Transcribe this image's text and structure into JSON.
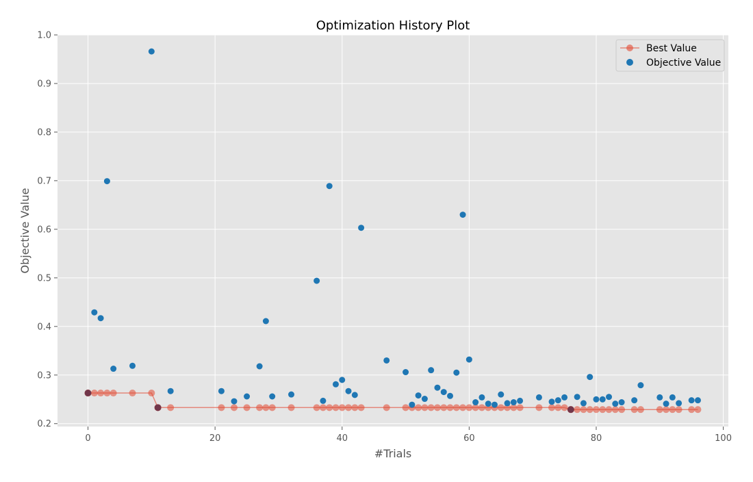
{
  "chart_data": {
    "type": "scatter",
    "title": "Optimization History Plot",
    "xlabel": "#Trials",
    "ylabel": "Objective Value",
    "xlim": [
      -4.8,
      100.8
    ],
    "ylim": [
      0.194,
      1.0
    ],
    "xticks": [
      0,
      20,
      40,
      60,
      80,
      100
    ],
    "yticks": [
      0.2,
      0.3,
      0.4,
      0.5,
      0.6,
      0.7,
      0.8,
      0.9,
      1.0
    ],
    "xtick_labels": [
      "0",
      "20",
      "40",
      "60",
      "80",
      "100"
    ],
    "ytick_labels": [
      "0.2",
      "0.3",
      "0.4",
      "0.5",
      "0.6",
      "0.7",
      "0.8",
      "0.9",
      "1.0"
    ],
    "grid": true,
    "legend_position": "top-right",
    "colors": {
      "best": "#e24a33",
      "objective": "#1f77b4",
      "plot_bg": "#e5e5e5"
    },
    "series": [
      {
        "name": "Best Value",
        "kind": "line+markers",
        "x": [
          0,
          1,
          2,
          3,
          4,
          7,
          10,
          11,
          13,
          21,
          23,
          25,
          27,
          28,
          29,
          32,
          36,
          37,
          38,
          39,
          40,
          41,
          42,
          43,
          47,
          50,
          51,
          52,
          53,
          54,
          55,
          56,
          57,
          58,
          59,
          60,
          61,
          62,
          63,
          64,
          65,
          66,
          67,
          68,
          71,
          73,
          74,
          75,
          76,
          77,
          78,
          79,
          80,
          81,
          82,
          83,
          84,
          86,
          87,
          90,
          91,
          92,
          93,
          95,
          96
        ],
        "y": [
          0.263,
          0.263,
          0.263,
          0.263,
          0.263,
          0.263,
          0.263,
          0.233,
          0.233,
          0.233,
          0.233,
          0.233,
          0.233,
          0.233,
          0.233,
          0.233,
          0.233,
          0.233,
          0.233,
          0.233,
          0.233,
          0.233,
          0.233,
          0.233,
          0.233,
          0.233,
          0.233,
          0.233,
          0.233,
          0.233,
          0.233,
          0.233,
          0.233,
          0.233,
          0.233,
          0.233,
          0.233,
          0.233,
          0.233,
          0.233,
          0.233,
          0.233,
          0.233,
          0.233,
          0.233,
          0.233,
          0.233,
          0.233,
          0.229,
          0.229,
          0.229,
          0.229,
          0.229,
          0.229,
          0.229,
          0.229,
          0.229,
          0.229,
          0.229,
          0.229,
          0.229,
          0.229,
          0.229,
          0.229,
          0.229
        ]
      },
      {
        "name": "Objective Value",
        "kind": "scatter",
        "x": [
          0,
          1,
          2,
          3,
          4,
          7,
          10,
          11,
          13,
          21,
          23,
          25,
          27,
          28,
          29,
          32,
          36,
          37,
          38,
          39,
          40,
          41,
          42,
          43,
          47,
          50,
          51,
          52,
          53,
          54,
          55,
          56,
          57,
          58,
          59,
          60,
          61,
          62,
          63,
          64,
          65,
          66,
          67,
          68,
          71,
          73,
          74,
          75,
          76,
          77,
          78,
          79,
          80,
          81,
          82,
          83,
          84,
          86,
          87,
          90,
          91,
          92,
          93,
          95,
          96
        ],
        "y": [
          0.263,
          0.429,
          0.417,
          0.699,
          0.313,
          0.319,
          0.966,
          0.233,
          0.267,
          0.267,
          0.246,
          0.256,
          0.318,
          0.411,
          0.256,
          0.26,
          0.494,
          0.247,
          0.689,
          0.281,
          0.29,
          0.267,
          0.259,
          0.603,
          0.33,
          0.306,
          0.239,
          0.258,
          0.251,
          0.31,
          0.274,
          0.265,
          0.257,
          0.305,
          0.63,
          0.332,
          0.244,
          0.254,
          0.241,
          0.239,
          0.26,
          0.242,
          0.244,
          0.247,
          0.254,
          0.245,
          0.248,
          0.254,
          0.229,
          0.255,
          0.242,
          0.296,
          0.25,
          0.25,
          0.255,
          0.241,
          0.244,
          0.248,
          0.279,
          0.254,
          0.241,
          0.254,
          0.242,
          0.248,
          0.248
        ]
      }
    ],
    "highlight_points": [
      {
        "x": 0,
        "y": 0.263
      },
      {
        "x": 11,
        "y": 0.233
      },
      {
        "x": 76,
        "y": 0.229
      }
    ]
  }
}
